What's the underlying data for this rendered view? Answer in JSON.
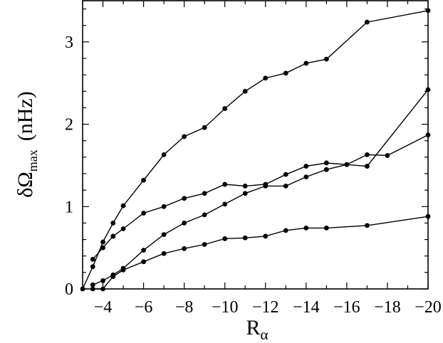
{
  "chart_data": {
    "type": "line",
    "xlabel": {
      "main": "R",
      "sub": "α"
    },
    "ylabel": {
      "main": "δΩ",
      "sub": "max",
      "unit": "(nHz)"
    },
    "xlim": [
      -3,
      -20
    ],
    "ylim": [
      0,
      3.5
    ],
    "x_ticks": [
      -4,
      -6,
      -8,
      -10,
      -12,
      -14,
      -16,
      -18,
      -20
    ],
    "x_tick_labels": [
      "−4",
      "−6",
      "−8",
      "−10",
      "−12",
      "−14",
      "−16",
      "−18",
      "−20"
    ],
    "y_ticks": [
      0,
      1,
      2,
      3
    ],
    "y_tick_labels": [
      "0",
      "1",
      "2",
      "3"
    ],
    "grid": false,
    "series": [
      {
        "x": [
          -3,
          -3.5,
          -4,
          -4.5,
          -5,
          -6,
          -7,
          -8,
          -9,
          -10,
          -11,
          -12,
          -13,
          -14,
          -15,
          -17,
          -20
        ],
        "y": [
          0,
          0.27,
          0.57,
          0.8,
          1.01,
          1.32,
          1.63,
          1.85,
          1.96,
          2.19,
          2.4,
          2.56,
          2.62,
          2.74,
          2.79,
          3.24,
          3.38
        ]
      },
      {
        "x": [
          -3.5,
          -4,
          -4.5,
          -5,
          -6,
          -7,
          -8,
          -9,
          -10,
          -11,
          -12,
          -13,
          -14,
          -15,
          -16,
          -17,
          -18,
          -20
        ],
        "y": [
          0.36,
          0.5,
          0.64,
          0.73,
          0.92,
          1.0,
          1.1,
          1.16,
          1.27,
          1.25,
          1.27,
          1.39,
          1.49,
          1.53,
          1.51,
          1.63,
          1.62,
          1.87
        ]
      },
      {
        "x": [
          -3.5,
          -4,
          -4.5,
          -5,
          -6,
          -7,
          -8,
          -9,
          -10,
          -11,
          -12,
          -13,
          -14,
          -15,
          -16,
          -17,
          -20
        ],
        "y": [
          0.05,
          0.1,
          0.17,
          0.25,
          0.47,
          0.66,
          0.8,
          0.9,
          1.03,
          1.16,
          1.25,
          1.25,
          1.36,
          1.45,
          1.51,
          1.49,
          2.42
        ]
      },
      {
        "x": [
          -3.5,
          -4,
          -4.5,
          -5,
          -6,
          -7,
          -8,
          -9,
          -10,
          -11,
          -12,
          -13,
          -14,
          -15,
          -17,
          -20
        ],
        "y": [
          0,
          0,
          0.15,
          0.23,
          0.33,
          0.43,
          0.49,
          0.54,
          0.61,
          0.62,
          0.64,
          0.71,
          0.74,
          0.74,
          0.77,
          0.88
        ]
      }
    ]
  }
}
